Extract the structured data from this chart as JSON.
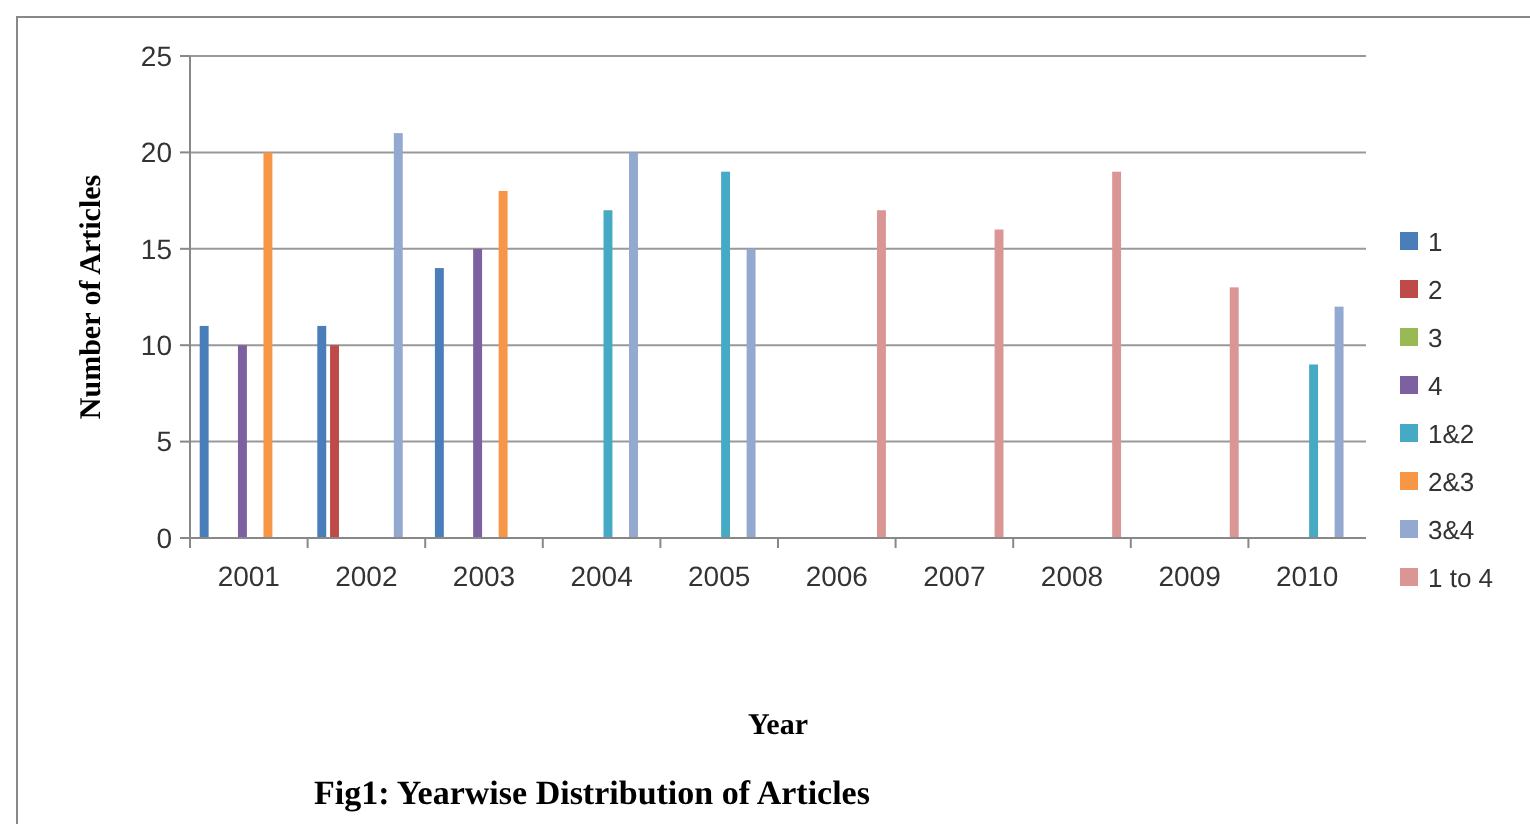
{
  "chart_data": {
    "type": "bar",
    "title": "Fig1: Yearwise Distribution of Articles",
    "xlabel": "Year",
    "ylabel": "Number of Articles",
    "categories": [
      "2001",
      "2002",
      "2003",
      "2004",
      "2005",
      "2006",
      "2007",
      "2008",
      "2009",
      "2010"
    ],
    "series": [
      {
        "name": "1",
        "color": "#4a7ebb",
        "values": [
          11,
          11,
          14,
          null,
          null,
          null,
          null,
          null,
          null,
          null
        ]
      },
      {
        "name": "2",
        "color": "#be4b48",
        "values": [
          null,
          10,
          null,
          null,
          null,
          null,
          null,
          null,
          null,
          null
        ]
      },
      {
        "name": "3",
        "color": "#98b954",
        "values": [
          null,
          null,
          null,
          null,
          null,
          null,
          null,
          null,
          null,
          null
        ]
      },
      {
        "name": "4",
        "color": "#7d60a0",
        "values": [
          10,
          null,
          15,
          null,
          null,
          null,
          null,
          null,
          null,
          null
        ]
      },
      {
        "name": "1&2",
        "color": "#46aac5",
        "values": [
          null,
          null,
          null,
          17,
          19,
          null,
          null,
          null,
          null,
          9
        ]
      },
      {
        "name": "2&3",
        "color": "#f79646",
        "values": [
          20,
          null,
          18,
          null,
          null,
          null,
          null,
          null,
          null,
          null
        ]
      },
      {
        "name": "3&4",
        "color": "#93a9cf",
        "values": [
          null,
          21,
          null,
          20,
          15,
          null,
          null,
          null,
          null,
          12
        ]
      },
      {
        "name": "1 to 4",
        "color": "#d99694",
        "values": [
          null,
          null,
          null,
          null,
          null,
          17,
          16,
          19,
          13,
          null
        ]
      }
    ],
    "ylim": [
      0,
      25
    ],
    "yticks": [
      0,
      5,
      10,
      15,
      20,
      25
    ],
    "grid": "y",
    "legend": "right"
  }
}
